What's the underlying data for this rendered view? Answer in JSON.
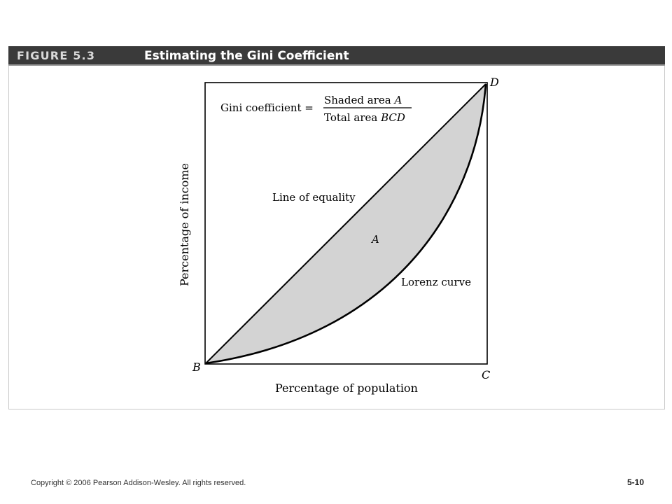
{
  "figure": {
    "number": "FIGURE 5.3",
    "title": "Estimating the Gini Coefficient"
  },
  "diagram": {
    "formula_lhs": "Gini coefficient =",
    "formula_numerator_text": "Shaded area ",
    "formula_numerator_var": "A",
    "formula_denominator_text": "Total area ",
    "formula_denominator_var": "BCD",
    "line_of_equality_label": "Line of equality",
    "lorenz_curve_label": "Lorenz curve",
    "area_label": "A",
    "point_b": "B",
    "point_c": "C",
    "point_d": "D",
    "x_axis_label": "Percentage of population",
    "y_axis_label": "Percentage of income",
    "colors": {
      "shaded_area": "#d3d3d3",
      "line": "#000000",
      "header_bg": "#3a3a3a"
    }
  },
  "footer": {
    "copyright": "Copyright © 2006 Pearson Addison-Wesley. All rights reserved.",
    "page_number": "5-10"
  }
}
